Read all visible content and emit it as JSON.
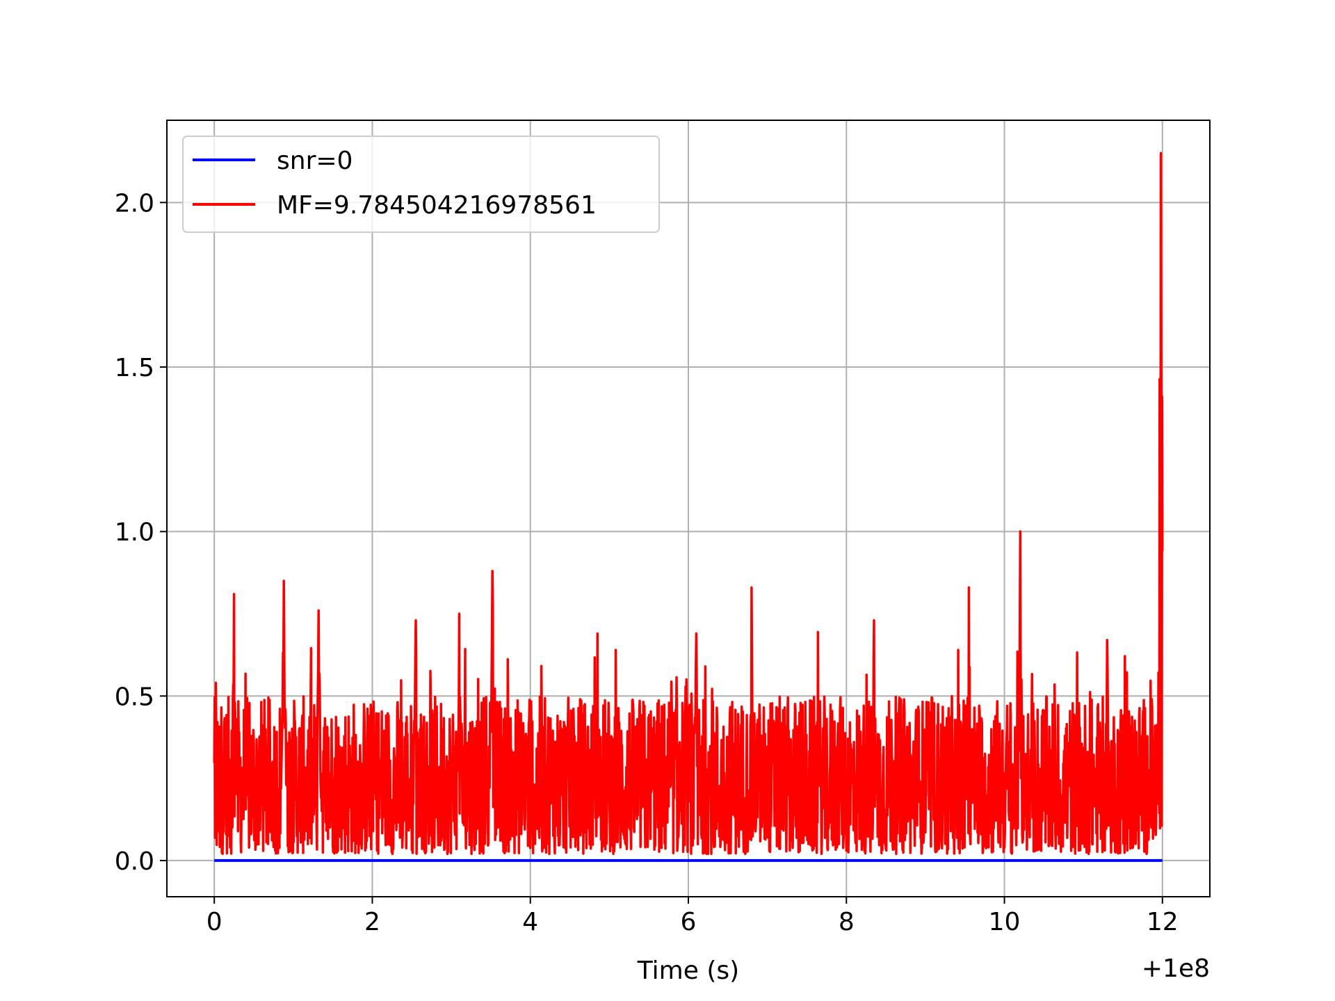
{
  "chart_data": {
    "type": "line",
    "title": "",
    "xlabel": "Time (s)",
    "ylabel": "",
    "x_offset_label": "+1e8",
    "xlim": [
      -0.6,
      12.6
    ],
    "ylim": [
      -0.11,
      2.25
    ],
    "xticks": [
      0,
      2,
      4,
      6,
      8,
      10,
      12
    ],
    "xtick_labels": [
      "0",
      "2",
      "4",
      "6",
      "8",
      "10",
      "12"
    ],
    "yticks": [
      0.0,
      0.5,
      1.0,
      1.5,
      2.0
    ],
    "ytick_labels": [
      "0.0",
      "0.5",
      "1.0",
      "1.5",
      "2.0"
    ],
    "grid": true,
    "legend_position": "top-left",
    "series": [
      {
        "name": "snr=0",
        "color": "#0000ff",
        "x": [
          0,
          12
        ],
        "y": [
          0,
          0
        ]
      },
      {
        "name": "MF=9.784504216978561",
        "color": "#ff0000",
        "x_range": [
          0,
          12
        ],
        "baseline_band": [
          0.02,
          0.5
        ],
        "peaks": [
          {
            "x": 0.02,
            "y": 0.54
          },
          {
            "x": 0.25,
            "y": 0.81
          },
          {
            "x": 0.88,
            "y": 0.85
          },
          {
            "x": 1.32,
            "y": 0.76
          },
          {
            "x": 2.55,
            "y": 0.73
          },
          {
            "x": 3.1,
            "y": 0.75
          },
          {
            "x": 3.52,
            "y": 0.88
          },
          {
            "x": 4.85,
            "y": 0.69
          },
          {
            "x": 6.1,
            "y": 0.69
          },
          {
            "x": 6.8,
            "y": 0.83
          },
          {
            "x": 8.35,
            "y": 0.73
          },
          {
            "x": 9.55,
            "y": 0.83
          },
          {
            "x": 10.2,
            "y": 1.0
          },
          {
            "x": 11.3,
            "y": 0.67
          },
          {
            "x": 11.98,
            "y": 2.15
          }
        ]
      }
    ]
  }
}
